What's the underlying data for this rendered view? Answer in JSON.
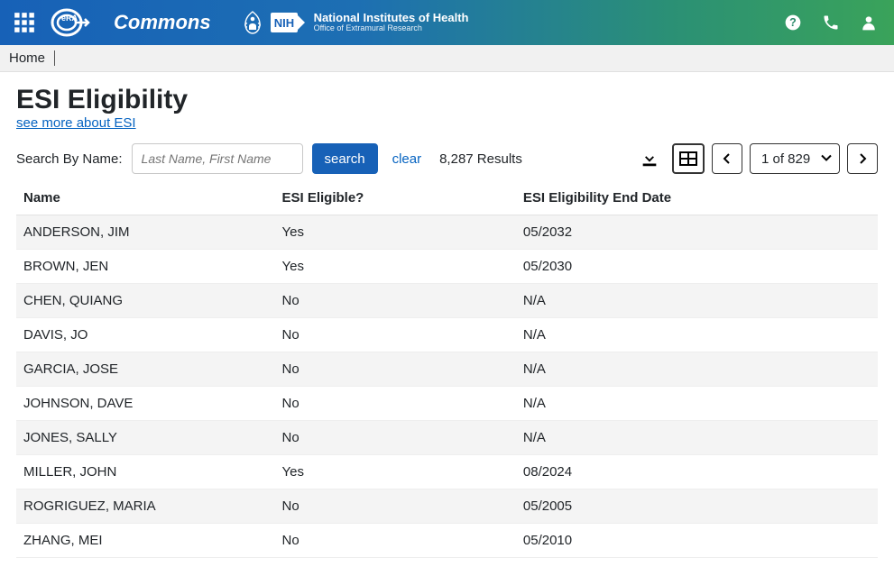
{
  "header": {
    "brand": "Commons",
    "nih_line1": "National Institutes of Health",
    "nih_line2": "Office of Extramural Research",
    "nih_badge": "NIH",
    "era_badge": "eRA"
  },
  "breadcrumb": {
    "home": "Home"
  },
  "page": {
    "title": "ESI Eligibility",
    "see_more": "see more about ESI"
  },
  "search": {
    "label": "Search By Name:",
    "placeholder": "Last Name, First Name",
    "button": "search",
    "clear": "clear",
    "results_count": "8,287 Results"
  },
  "pagination": {
    "display": "1 of 829"
  },
  "table": {
    "columns": [
      "Name",
      "ESI Eligible?",
      "ESI Eligibility End Date"
    ],
    "rows": [
      [
        "ANDERSON, JIM",
        "Yes",
        "05/2032"
      ],
      [
        "BROWN, JEN",
        "Yes",
        "05/2030"
      ],
      [
        "CHEN, QUIANG",
        "No",
        "N/A"
      ],
      [
        "DAVIS, JO",
        "No",
        "N/A"
      ],
      [
        "GARCIA, JOSE",
        "No",
        "N/A"
      ],
      [
        "JOHNSON, DAVE",
        "No",
        "N/A"
      ],
      [
        "JONES, SALLY",
        "No",
        "N/A"
      ],
      [
        "MILLER, JOHN",
        "Yes",
        "08/2024"
      ],
      [
        "ROGRIGUEZ, MARIA",
        "No",
        "05/2005"
      ],
      [
        "ZHANG, MEI",
        "No",
        "05/2010"
      ]
    ]
  },
  "colors": {
    "header_grad_start": "#1761b7",
    "header_grad_end": "#3aa35a",
    "link": "#0563c1",
    "row_stripe": "#f4f4f4"
  }
}
